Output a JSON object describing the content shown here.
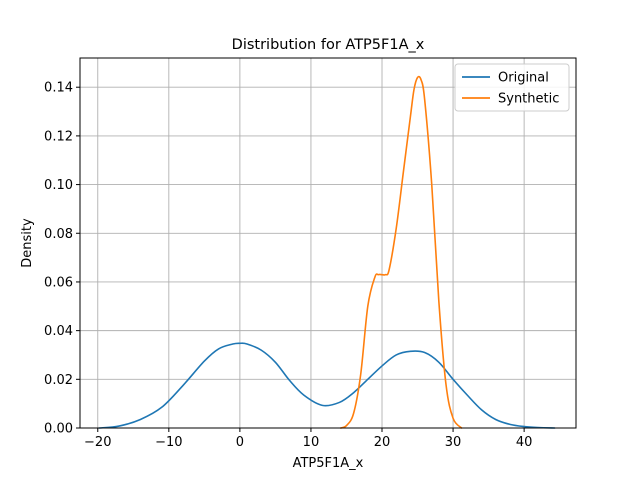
{
  "chart_data": {
    "type": "line",
    "title": "Distribution for ATP5F1A_x",
    "xlabel": "ATP5F1A_x",
    "ylabel": "Density",
    "xlim": [
      -22.5,
      47.3
    ],
    "ylim": [
      0.0,
      0.152
    ],
    "x_ticks": [
      -20,
      -10,
      0,
      10,
      20,
      30,
      40
    ],
    "x_tick_labels": [
      "−20",
      "−10",
      "0",
      "10",
      "20",
      "30",
      "40"
    ],
    "y_ticks": [
      0.0,
      0.02,
      0.04,
      0.06,
      0.08,
      0.1,
      0.12,
      0.14
    ],
    "y_tick_labels": [
      "0.00",
      "0.02",
      "0.04",
      "0.06",
      "0.08",
      "0.10",
      "0.12",
      "0.14"
    ],
    "grid": true,
    "legend_position": "top-right",
    "colors": {
      "original": "#1f77b4",
      "synthetic": "#ff7f0e",
      "grid": "#b0b0b0"
    },
    "series": [
      {
        "name": "Original",
        "x": [
          -19.8,
          -17.0,
          -14.0,
          -11.0,
          -8.0,
          -5.0,
          -3.0,
          -1.0,
          0.0,
          1.0,
          3.0,
          5.0,
          7.0,
          9.0,
          11.6,
          14.0,
          16.0,
          18.0,
          20.0,
          22.0,
          24.0,
          26.0,
          28.0,
          30.0,
          32.0,
          34.0,
          36.0,
          38.0,
          40.0,
          42.0,
          44.3
        ],
        "y": [
          0.0,
          0.0008,
          0.0035,
          0.0085,
          0.0175,
          0.0275,
          0.0325,
          0.0345,
          0.0348,
          0.0345,
          0.032,
          0.027,
          0.0195,
          0.0135,
          0.0093,
          0.0105,
          0.0145,
          0.02,
          0.0255,
          0.03,
          0.0315,
          0.031,
          0.027,
          0.02,
          0.0135,
          0.0075,
          0.0035,
          0.0015,
          0.0006,
          0.0002,
          0.0
        ]
      },
      {
        "name": "Synthetic",
        "x": [
          14.2,
          15.0,
          16.0,
          17.0,
          18.0,
          19.0,
          19.5,
          20.0,
          20.5,
          21.0,
          22.0,
          23.0,
          24.0,
          24.5,
          25.0,
          25.5,
          26.0,
          27.0,
          28.0,
          29.0,
          30.0,
          31.2
        ],
        "y": [
          0.0,
          0.001,
          0.006,
          0.022,
          0.05,
          0.062,
          0.063,
          0.063,
          0.063,
          0.065,
          0.082,
          0.105,
          0.128,
          0.139,
          0.144,
          0.143,
          0.135,
          0.1,
          0.052,
          0.018,
          0.004,
          0.0
        ]
      }
    ]
  }
}
